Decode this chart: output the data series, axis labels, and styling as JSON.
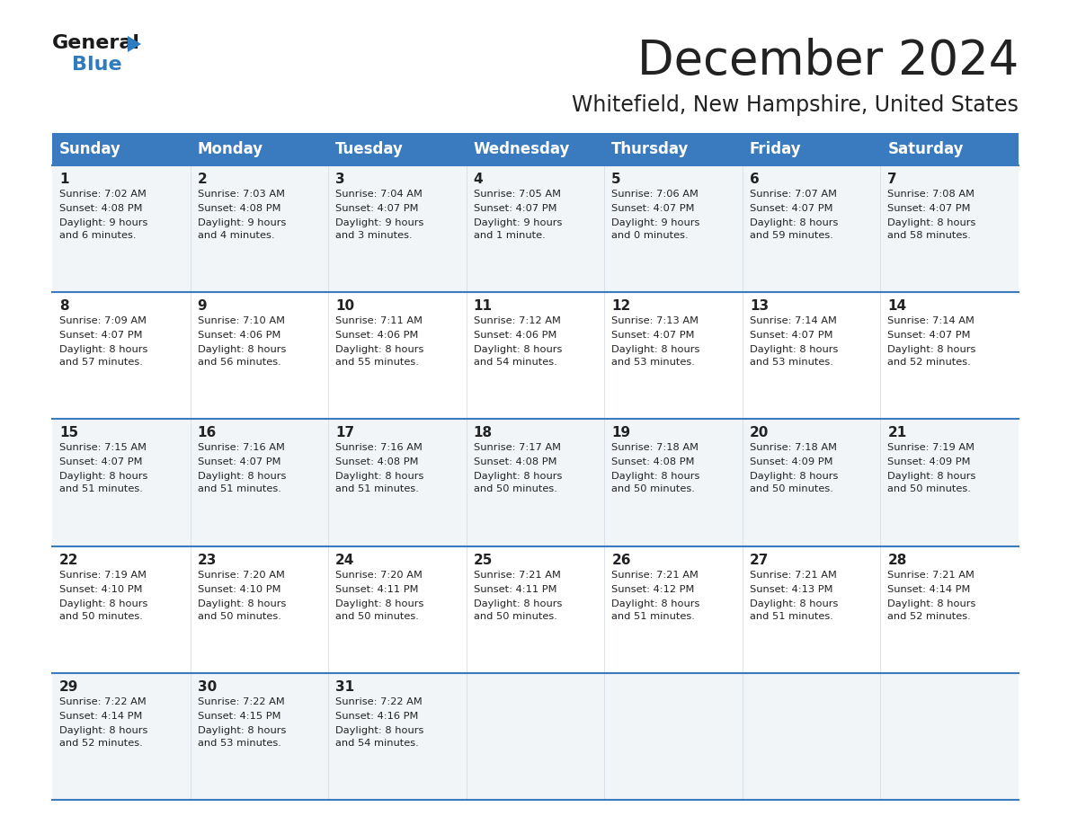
{
  "title": "December 2024",
  "subtitle": "Whitefield, New Hampshire, United States",
  "header_bg": "#3a7abf",
  "header_text_color": "#ffffff",
  "cell_bg_light": "#f2f5f8",
  "cell_bg_white": "#ffffff",
  "row_line_color": "#3a7abf",
  "text_color": "#222222",
  "days_of_week": [
    "Sunday",
    "Monday",
    "Tuesday",
    "Wednesday",
    "Thursday",
    "Friday",
    "Saturday"
  ],
  "logo_general_color": "#1a1a1a",
  "logo_blue_color": "#2e7bbf",
  "logo_triangle_color": "#2e7bbf",
  "calendar": [
    [
      {
        "day": 1,
        "sunrise": "7:02 AM",
        "sunset": "4:08 PM",
        "daylight_line1": "Daylight: 9 hours",
        "daylight_line2": "and 6 minutes."
      },
      {
        "day": 2,
        "sunrise": "7:03 AM",
        "sunset": "4:08 PM",
        "daylight_line1": "Daylight: 9 hours",
        "daylight_line2": "and 4 minutes."
      },
      {
        "day": 3,
        "sunrise": "7:04 AM",
        "sunset": "4:07 PM",
        "daylight_line1": "Daylight: 9 hours",
        "daylight_line2": "and 3 minutes."
      },
      {
        "day": 4,
        "sunrise": "7:05 AM",
        "sunset": "4:07 PM",
        "daylight_line1": "Daylight: 9 hours",
        "daylight_line2": "and 1 minute."
      },
      {
        "day": 5,
        "sunrise": "7:06 AM",
        "sunset": "4:07 PM",
        "daylight_line1": "Daylight: 9 hours",
        "daylight_line2": "and 0 minutes."
      },
      {
        "day": 6,
        "sunrise": "7:07 AM",
        "sunset": "4:07 PM",
        "daylight_line1": "Daylight: 8 hours",
        "daylight_line2": "and 59 minutes."
      },
      {
        "day": 7,
        "sunrise": "7:08 AM",
        "sunset": "4:07 PM",
        "daylight_line1": "Daylight: 8 hours",
        "daylight_line2": "and 58 minutes."
      }
    ],
    [
      {
        "day": 8,
        "sunrise": "7:09 AM",
        "sunset": "4:07 PM",
        "daylight_line1": "Daylight: 8 hours",
        "daylight_line2": "and 57 minutes."
      },
      {
        "day": 9,
        "sunrise": "7:10 AM",
        "sunset": "4:06 PM",
        "daylight_line1": "Daylight: 8 hours",
        "daylight_line2": "and 56 minutes."
      },
      {
        "day": 10,
        "sunrise": "7:11 AM",
        "sunset": "4:06 PM",
        "daylight_line1": "Daylight: 8 hours",
        "daylight_line2": "and 55 minutes."
      },
      {
        "day": 11,
        "sunrise": "7:12 AM",
        "sunset": "4:06 PM",
        "daylight_line1": "Daylight: 8 hours",
        "daylight_line2": "and 54 minutes."
      },
      {
        "day": 12,
        "sunrise": "7:13 AM",
        "sunset": "4:07 PM",
        "daylight_line1": "Daylight: 8 hours",
        "daylight_line2": "and 53 minutes."
      },
      {
        "day": 13,
        "sunrise": "7:14 AM",
        "sunset": "4:07 PM",
        "daylight_line1": "Daylight: 8 hours",
        "daylight_line2": "and 53 minutes."
      },
      {
        "day": 14,
        "sunrise": "7:14 AM",
        "sunset": "4:07 PM",
        "daylight_line1": "Daylight: 8 hours",
        "daylight_line2": "and 52 minutes."
      }
    ],
    [
      {
        "day": 15,
        "sunrise": "7:15 AM",
        "sunset": "4:07 PM",
        "daylight_line1": "Daylight: 8 hours",
        "daylight_line2": "and 51 minutes."
      },
      {
        "day": 16,
        "sunrise": "7:16 AM",
        "sunset": "4:07 PM",
        "daylight_line1": "Daylight: 8 hours",
        "daylight_line2": "and 51 minutes."
      },
      {
        "day": 17,
        "sunrise": "7:16 AM",
        "sunset": "4:08 PM",
        "daylight_line1": "Daylight: 8 hours",
        "daylight_line2": "and 51 minutes."
      },
      {
        "day": 18,
        "sunrise": "7:17 AM",
        "sunset": "4:08 PM",
        "daylight_line1": "Daylight: 8 hours",
        "daylight_line2": "and 50 minutes."
      },
      {
        "day": 19,
        "sunrise": "7:18 AM",
        "sunset": "4:08 PM",
        "daylight_line1": "Daylight: 8 hours",
        "daylight_line2": "and 50 minutes."
      },
      {
        "day": 20,
        "sunrise": "7:18 AM",
        "sunset": "4:09 PM",
        "daylight_line1": "Daylight: 8 hours",
        "daylight_line2": "and 50 minutes."
      },
      {
        "day": 21,
        "sunrise": "7:19 AM",
        "sunset": "4:09 PM",
        "daylight_line1": "Daylight: 8 hours",
        "daylight_line2": "and 50 minutes."
      }
    ],
    [
      {
        "day": 22,
        "sunrise": "7:19 AM",
        "sunset": "4:10 PM",
        "daylight_line1": "Daylight: 8 hours",
        "daylight_line2": "and 50 minutes."
      },
      {
        "day": 23,
        "sunrise": "7:20 AM",
        "sunset": "4:10 PM",
        "daylight_line1": "Daylight: 8 hours",
        "daylight_line2": "and 50 minutes."
      },
      {
        "day": 24,
        "sunrise": "7:20 AM",
        "sunset": "4:11 PM",
        "daylight_line1": "Daylight: 8 hours",
        "daylight_line2": "and 50 minutes."
      },
      {
        "day": 25,
        "sunrise": "7:21 AM",
        "sunset": "4:11 PM",
        "daylight_line1": "Daylight: 8 hours",
        "daylight_line2": "and 50 minutes."
      },
      {
        "day": 26,
        "sunrise": "7:21 AM",
        "sunset": "4:12 PM",
        "daylight_line1": "Daylight: 8 hours",
        "daylight_line2": "and 51 minutes."
      },
      {
        "day": 27,
        "sunrise": "7:21 AM",
        "sunset": "4:13 PM",
        "daylight_line1": "Daylight: 8 hours",
        "daylight_line2": "and 51 minutes."
      },
      {
        "day": 28,
        "sunrise": "7:21 AM",
        "sunset": "4:14 PM",
        "daylight_line1": "Daylight: 8 hours",
        "daylight_line2": "and 52 minutes."
      }
    ],
    [
      {
        "day": 29,
        "sunrise": "7:22 AM",
        "sunset": "4:14 PM",
        "daylight_line1": "Daylight: 8 hours",
        "daylight_line2": "and 52 minutes."
      },
      {
        "day": 30,
        "sunrise": "7:22 AM",
        "sunset": "4:15 PM",
        "daylight_line1": "Daylight: 8 hours",
        "daylight_line2": "and 53 minutes."
      },
      {
        "day": 31,
        "sunrise": "7:22 AM",
        "sunset": "4:16 PM",
        "daylight_line1": "Daylight: 8 hours",
        "daylight_line2": "and 54 minutes."
      },
      null,
      null,
      null,
      null
    ]
  ]
}
